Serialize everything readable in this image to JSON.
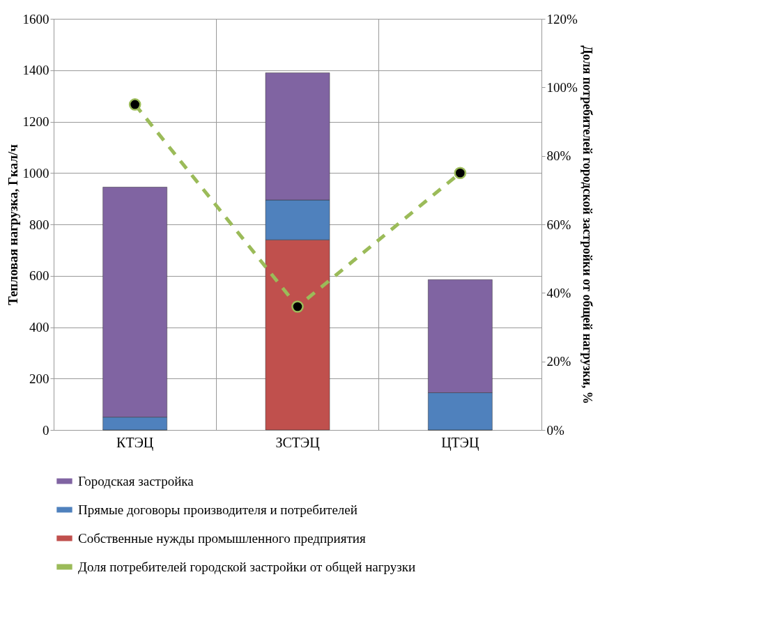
{
  "chart_data": {
    "type": "bar",
    "stacked": true,
    "categories": [
      "КТЭЦ",
      "ЗСТЭЦ",
      "ЦТЭЦ"
    ],
    "ylabel": "Тепловая нагрузка, Гкал/ч",
    "y2label": "Доля потребителей городской застройки от общей нагрузки, %",
    "ylim": [
      0,
      1600
    ],
    "yticks": [
      0,
      200,
      400,
      600,
      800,
      1000,
      1200,
      1400,
      1600
    ],
    "y2lim": [
      0,
      120
    ],
    "y2ticks": [
      {
        "value": 0,
        "label": "0%"
      },
      {
        "value": 20,
        "label": "20%"
      },
      {
        "value": 40,
        "label": "40%"
      },
      {
        "value": 60,
        "label": "60%"
      },
      {
        "value": 80,
        "label": "80%"
      },
      {
        "value": 100,
        "label": "100%"
      },
      {
        "value": 120,
        "label": "120%"
      }
    ],
    "grid": true,
    "legend": "bottom",
    "series": [
      {
        "name": "Собственные нужды  промышленного предприятия",
        "color": "#c0504d",
        "values": [
          0,
          740,
          0
        ]
      },
      {
        "name": "Прямые договоры производителя и потребителей",
        "color": "#4f81bd",
        "values": [
          50,
          155,
          145
        ]
      },
      {
        "name": "Городская застройка",
        "color": "#8064a2",
        "values": [
          895,
          495,
          440
        ]
      },
      {
        "name": "Доля потребителей городской застройки от общей нагрузки",
        "type": "line",
        "axis": "y2",
        "color": "#9bbb59",
        "marker": "circle",
        "line_style": "dashed",
        "values": [
          95,
          36,
          75
        ]
      }
    ]
  }
}
